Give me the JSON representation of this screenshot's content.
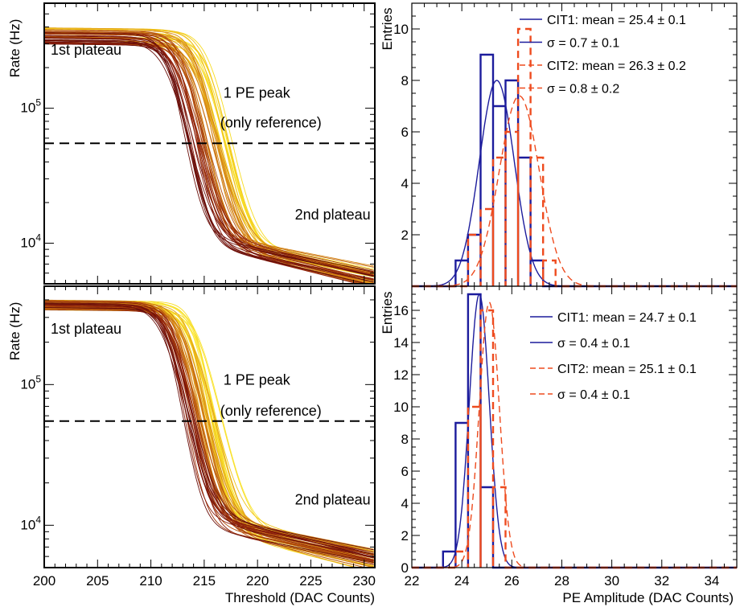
{
  "chart_data": [
    {
      "id": "tl",
      "type": "line",
      "title": "",
      "xlabel": "",
      "ylabel": "Rate (Hz)",
      "y_scale": "log",
      "xlim": [
        200,
        231
      ],
      "ylim": [
        5000,
        600000
      ],
      "y_major_ticks": [
        {
          "value": 10000,
          "base": "10",
          "exp": "4"
        },
        {
          "value": 100000,
          "base": "10",
          "exp": "5"
        }
      ],
      "reference_line": {
        "y": 55000,
        "style": "dashed"
      },
      "curve_family": {
        "count": 56,
        "colors": [
          "#6b0f0a",
          "#8a1c0a",
          "#a0360c",
          "#b5500c",
          "#c46810",
          "#d58514",
          "#e2a017",
          "#f0c31a",
          "#f7dc22"
        ],
        "plateau1_range": [
          290000,
          385000
        ],
        "edge_range": [
          211.8,
          215.6
        ],
        "plateau2_range": [
          9000,
          11500
        ]
      },
      "annotations": [
        {
          "text": "1st plateau",
          "x": 200.6,
          "y": 250000
        },
        {
          "text": "1 PE peak",
          "x": 216.8,
          "y": 120000
        },
        {
          "text": "(only reference)",
          "x": 216.5,
          "y": 72000
        },
        {
          "text": "2nd plateau",
          "x": 223.5,
          "y": 15000
        }
      ]
    },
    {
      "id": "tr",
      "type": "bar",
      "title": "",
      "xlabel": "",
      "ylabel": "Entries",
      "xlim": [
        22,
        35
      ],
      "ylim": [
        0,
        11
      ],
      "y_ticks": [
        2,
        4,
        6,
        8,
        10
      ],
      "series": [
        {
          "name": "CIT1",
          "color": "#1c1c9c",
          "style": "solid",
          "bin_width": 0.5,
          "bins": [
            {
              "x": 24.0,
              "value": 1
            },
            {
              "x": 24.5,
              "value": 2
            },
            {
              "x": 25.0,
              "value": 9
            },
            {
              "x": 25.5,
              "value": 7
            },
            {
              "x": 26.0,
              "value": 8
            },
            {
              "x": 26.5,
              "value": 5
            },
            {
              "x": 27.0,
              "value": 1
            }
          ],
          "fit": {
            "mean": 25.4,
            "sigma": 0.7,
            "amplitude": 8.0
          }
        },
        {
          "name": "CIT2",
          "color": "#ee4b1e",
          "style": "dashed",
          "bin_width": 0.5,
          "bins": [
            {
              "x": 24.5,
              "value": 2
            },
            {
              "x": 25.0,
              "value": 3
            },
            {
              "x": 25.5,
              "value": 5
            },
            {
              "x": 26.0,
              "value": 6
            },
            {
              "x": 26.5,
              "value": 10
            },
            {
              "x": 27.0,
              "value": 5
            },
            {
              "x": 27.5,
              "value": 1
            }
          ],
          "fit": {
            "mean": 26.3,
            "sigma": 0.8,
            "amplitude": 7.4
          }
        }
      ],
      "legend": {
        "placement": "top-right",
        "entries": [
          {
            "series": 0,
            "text": "CIT1: mean = 25.4 ± 0.1"
          },
          {
            "series": 0,
            "text": "σ = 0.7 ± 0.1"
          },
          {
            "series": 1,
            "text": "CIT2: mean = 26.3 ± 0.2"
          },
          {
            "series": 1,
            "text": "σ = 0.8 ± 0.2"
          }
        ]
      }
    },
    {
      "id": "bl",
      "type": "line",
      "title": "",
      "xlabel": "Threshold (DAC Counts)",
      "ylabel": "Rate (Hz)",
      "y_scale": "log",
      "xlim": [
        200,
        231
      ],
      "ylim": [
        5000,
        500000
      ],
      "x_ticks": [
        200,
        205,
        210,
        215,
        220,
        225,
        230
      ],
      "y_major_ticks": [
        {
          "value": 10000,
          "base": "10",
          "exp": "4"
        },
        {
          "value": 100000,
          "base": "10",
          "exp": "5"
        }
      ],
      "reference_line": {
        "y": 55000,
        "style": "dashed"
      },
      "curve_family": {
        "count": 60,
        "colors": [
          "#6b0f0a",
          "#8a1c0a",
          "#a0360c",
          "#b5500c",
          "#c46810",
          "#d58514",
          "#e2a017",
          "#f0c31a",
          "#f7dc22",
          "#fbe83a"
        ],
        "plateau1_range": [
          330000,
          390000
        ],
        "edge_range": [
          211.6,
          214.6
        ],
        "plateau2_range": [
          9000,
          11800
        ]
      },
      "annotations": [
        {
          "text": "1st plateau",
          "x": 200.6,
          "y": 230000
        },
        {
          "text": "1 PE peak",
          "x": 216.8,
          "y": 100000
        },
        {
          "text": "(only reference)",
          "x": 216.5,
          "y": 60000
        },
        {
          "text": "2nd plateau",
          "x": 223.5,
          "y": 14000
        }
      ]
    },
    {
      "id": "br",
      "type": "bar",
      "title": "",
      "xlabel": "PE Amplitude (DAC Counts)",
      "ylabel": "Entries",
      "xlim": [
        22,
        35
      ],
      "ylim": [
        0,
        17.5
      ],
      "x_ticks": [
        22,
        24,
        26,
        28,
        30,
        32,
        34
      ],
      "y_ticks": [
        0,
        2,
        4,
        6,
        8,
        10,
        12,
        14,
        16
      ],
      "series": [
        {
          "name": "CIT1",
          "color": "#1c1c9c",
          "style": "solid",
          "bin_width": 0.5,
          "bins": [
            {
              "x": 23.5,
              "value": 1
            },
            {
              "x": 24.0,
              "value": 9
            },
            {
              "x": 24.5,
              "value": 17
            },
            {
              "x": 25.0,
              "value": 5
            }
          ],
          "fit": {
            "mean": 24.7,
            "sigma": 0.4,
            "amplitude": 17.0
          }
        },
        {
          "name": "CIT2",
          "color": "#ee4b1e",
          "style": "dashed",
          "bin_width": 0.5,
          "bins": [
            {
              "x": 24.0,
              "value": 1
            },
            {
              "x": 24.5,
              "value": 10
            },
            {
              "x": 25.0,
              "value": 16
            },
            {
              "x": 25.5,
              "value": 5
            }
          ],
          "fit": {
            "mean": 25.1,
            "sigma": 0.4,
            "amplitude": 16.5
          }
        }
      ],
      "legend": {
        "placement": "top-right",
        "entries": [
          {
            "series": 0,
            "text": "CIT1: mean = 24.7 ± 0.1"
          },
          {
            "series": 0,
            "text": "σ = 0.4 ± 0.1"
          },
          {
            "series": 1,
            "text": "CIT2: mean = 25.1 ± 0.1"
          },
          {
            "series": 1,
            "text": "σ = 0.4 ± 0.1"
          }
        ]
      }
    }
  ]
}
